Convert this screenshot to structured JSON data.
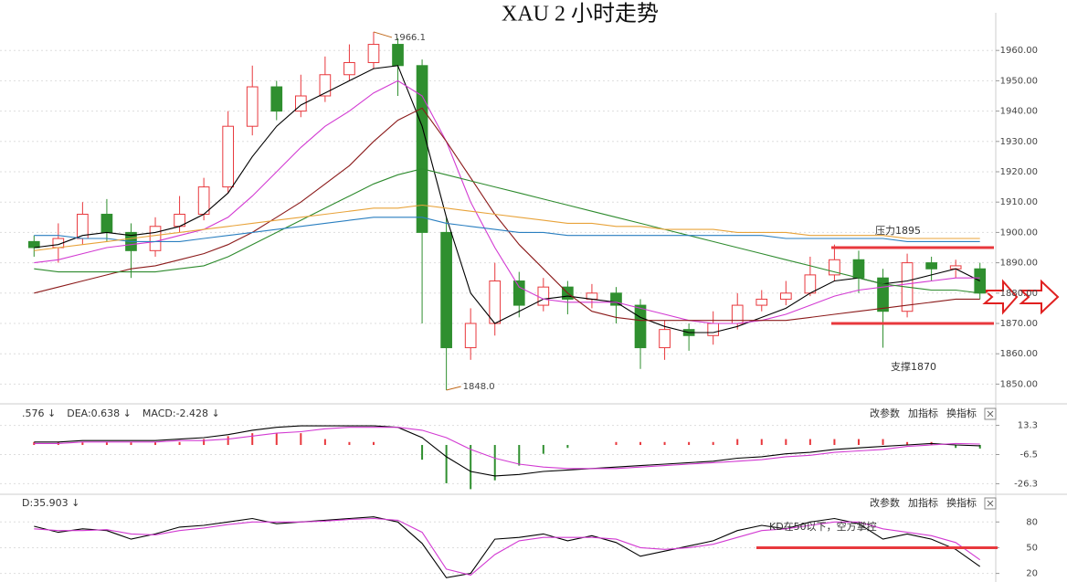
{
  "chart_data": [
    {
      "type": "candlestick",
      "title": "XAU 2 小时走势",
      "open": [
        1897,
        1895,
        1898,
        1906,
        1900,
        1894,
        1902,
        1906,
        1915,
        1935,
        1948,
        1940,
        1945,
        1952,
        1956,
        1962,
        1955,
        1900,
        1862,
        1870,
        1884,
        1876,
        1882,
        1878,
        1880,
        1876,
        1862,
        1868,
        1866,
        1870,
        1876,
        1878,
        1880,
        1886,
        1891,
        1885,
        1874,
        1890,
        1888,
        1888
      ],
      "high": [
        1899,
        1903,
        1910,
        1911,
        1903,
        1905,
        1912,
        1918,
        1940,
        1955,
        1950,
        1952,
        1958,
        1962,
        1966.1,
        1964,
        1957,
        1905,
        1875,
        1890,
        1887,
        1885,
        1884,
        1883,
        1882,
        1878,
        1871,
        1870,
        1874,
        1880,
        1881,
        1884,
        1892,
        1896,
        1894,
        1888,
        1893,
        1892,
        1891,
        1890
      ],
      "low": [
        1892,
        1890,
        1896,
        1897,
        1885,
        1892,
        1900,
        1904,
        1913,
        1932,
        1937,
        1938,
        1943,
        1950,
        1954,
        1945,
        1870,
        1848,
        1858,
        1866,
        1872,
        1874,
        1873,
        1875,
        1870,
        1855,
        1858,
        1861,
        1863,
        1868,
        1874,
        1876,
        1879,
        1884,
        1880,
        1862,
        1872,
        1884,
        1885,
        1878
      ],
      "close": [
        1895,
        1898,
        1906,
        1900,
        1894,
        1902,
        1906,
        1915,
        1935,
        1948,
        1940,
        1945,
        1952,
        1956,
        1962,
        1955,
        1900,
        1862,
        1870,
        1884,
        1876,
        1882,
        1878,
        1880,
        1876,
        1862,
        1868,
        1866,
        1870,
        1876,
        1878,
        1880,
        1886,
        1891,
        1885,
        1874,
        1890,
        1888,
        1889,
        1880
      ],
      "up_color": "#e8383d",
      "down_color": "#2f8f2f",
      "series": [
        {
          "color": "#000000",
          "values": [
            1895,
            1896,
            1899,
            1900,
            1899,
            1900,
            1902,
            1906,
            1913,
            1925,
            1935,
            1942,
            1946,
            1950,
            1954,
            1955,
            1935,
            1905,
            1880,
            1870,
            1874,
            1878,
            1879,
            1878,
            1877,
            1872,
            1869,
            1867,
            1867,
            1869,
            1872,
            1875,
            1880,
            1884,
            1885,
            1883,
            1884,
            1886,
            1888,
            1884
          ]
        },
        {
          "color": "#d23ad2",
          "values": [
            1890,
            1891,
            1893,
            1895,
            1896,
            1897,
            1899,
            1901,
            1905,
            1912,
            1920,
            1928,
            1935,
            1940,
            1946,
            1950,
            1945,
            1930,
            1910,
            1895,
            1882,
            1878,
            1877,
            1877,
            1877,
            1875,
            1873,
            1871,
            1870,
            1870,
            1871,
            1873,
            1876,
            1879,
            1881,
            1882,
            1883,
            1884,
            1885,
            1885
          ]
        },
        {
          "color": "#8b1a1a",
          "values": [
            1880,
            1882,
            1884,
            1886,
            1888,
            1889,
            1891,
            1893,
            1896,
            1900,
            1905,
            1910,
            1916,
            1922,
            1930,
            1937,
            1941,
            1930,
            1918,
            1906,
            1896,
            1888,
            1880,
            1874,
            1872,
            1871,
            1871,
            1871,
            1871,
            1871,
            1871,
            1871,
            1872,
            1873,
            1874,
            1875,
            1876,
            1877,
            1878,
            1878
          ]
        },
        {
          "color": "#2e8b2e",
          "values": [
            1888,
            1887,
            1887,
            1887,
            1887,
            1887,
            1888,
            1889,
            1892,
            1896,
            1900,
            1904,
            1908,
            1912,
            1916,
            1919,
            1921,
            1919,
            1917,
            1915,
            1913,
            1911,
            1909,
            1907,
            1905,
            1903,
            1901,
            1899,
            1897,
            1895,
            1893,
            1891,
            1889,
            1887,
            1885,
            1883,
            1882,
            1881,
            1881,
            1880
          ]
        },
        {
          "color": "#2a7fc0",
          "values": [
            1899,
            1899,
            1898,
            1898,
            1897,
            1897,
            1897,
            1898,
            1899,
            1900,
            1901,
            1902,
            1903,
            1904,
            1905,
            1905,
            1905,
            1903,
            1902,
            1901,
            1900,
            1900,
            1899,
            1899,
            1899,
            1899,
            1899,
            1899,
            1899,
            1899,
            1899,
            1898,
            1898,
            1898,
            1898,
            1898,
            1897,
            1897,
            1897,
            1897
          ]
        },
        {
          "color": "#e8a33a",
          "values": [
            1894,
            1895,
            1896,
            1897,
            1898,
            1899,
            1900,
            1901,
            1902,
            1903,
            1904,
            1905,
            1906,
            1907,
            1908,
            1908,
            1909,
            1908,
            1907,
            1906,
            1905,
            1904,
            1903,
            1903,
            1902,
            1902,
            1901,
            1901,
            1901,
            1900,
            1900,
            1900,
            1899,
            1899,
            1899,
            1899,
            1898,
            1898,
            1898,
            1898
          ]
        }
      ],
      "ylim": [
        1845,
        1970
      ],
      "yticks": [
        {
          "value": 1850,
          "label": "1850.00"
        },
        {
          "value": 1860,
          "label": "1860.00"
        },
        {
          "value": 1870,
          "label": "1870.00"
        },
        {
          "value": 1880,
          "label": "1880.00"
        },
        {
          "value": 1890,
          "label": "1890.00"
        },
        {
          "value": 1900,
          "label": "1900.00"
        },
        {
          "value": 1910,
          "label": "1910.00"
        },
        {
          "value": 1920,
          "label": "1920.00"
        },
        {
          "value": 1930,
          "label": "1930.00"
        },
        {
          "value": 1940,
          "label": "1940.00"
        },
        {
          "value": 1950,
          "label": "1950.00"
        },
        {
          "value": 1960,
          "label": "1960.00"
        }
      ],
      "grid": true,
      "peak_label": "1966.1",
      "trough_label": "1848.0",
      "levels": [
        {
          "label": "压力1895",
          "value": 1895,
          "color": "#e8383d"
        },
        {
          "label": "支撑1870",
          "value": 1870,
          "color": "#e8383d"
        }
      ]
    },
    {
      "type": "macd",
      "header": [
        {
          "text": ".576 ↓",
          "color": "#000000"
        },
        {
          "text": "DEA:0.638 ↓",
          "color": "#d23ad2"
        },
        {
          "text": "MACD:-2.428 ↓",
          "color": "#333333"
        }
      ],
      "tools": [
        "改参数",
        "加指标",
        "换指标"
      ],
      "series": [
        {
          "color": "#000000",
          "values": [
            2,
            2,
            3,
            3,
            3,
            3,
            4,
            5,
            7,
            10,
            12,
            13,
            13,
            13,
            13,
            12,
            5,
            -8,
            -18,
            -21,
            -20,
            -18,
            -17,
            -16,
            -15,
            -14,
            -13,
            -12,
            -11,
            -9,
            -8,
            -6,
            -5,
            -3,
            -2,
            -1,
            0,
            1,
            0,
            -0.576
          ]
        },
        {
          "color": "#d23ad2",
          "values": [
            1,
            1,
            2,
            2,
            2,
            2,
            3,
            3,
            4,
            6,
            8,
            9,
            11,
            12,
            12,
            12,
            10,
            5,
            -3,
            -9,
            -13,
            -15,
            -16,
            -16,
            -16,
            -15,
            -14,
            -13,
            -12,
            -11,
            -10,
            -8,
            -7,
            -5,
            -4,
            -3,
            -1,
            0,
            1,
            0.638
          ]
        }
      ],
      "histogram": [
        2,
        2,
        2,
        2,
        2,
        2,
        2,
        4,
        6,
        8,
        8,
        8,
        4,
        2,
        2,
        0,
        -10,
        -26,
        -30,
        -24,
        -14,
        -6,
        -2,
        0,
        2,
        2,
        2,
        2,
        2,
        4,
        4,
        4,
        4,
        4,
        4,
        4,
        2,
        2,
        -2,
        -2.428
      ],
      "up_color": "#e8383d",
      "down_color": "#2f8f2f",
      "ylim": [
        -31,
        18
      ],
      "yticks": [
        13.3,
        -6.5,
        -26.3
      ],
      "grid": true
    },
    {
      "type": "kd",
      "header": [
        {
          "text": "D:35.903 ↓",
          "color": "#d23ad2"
        }
      ],
      "tools": [
        "改参数",
        "加指标",
        "换指标"
      ],
      "series": [
        {
          "color": "#000000",
          "values": [
            75,
            68,
            72,
            70,
            60,
            66,
            74,
            76,
            80,
            84,
            78,
            80,
            82,
            84,
            86,
            80,
            55,
            15,
            20,
            60,
            62,
            66,
            58,
            64,
            56,
            40,
            46,
            52,
            58,
            70,
            76,
            72,
            80,
            84,
            78,
            60,
            66,
            60,
            48,
            28
          ]
        },
        {
          "color": "#d23ad2",
          "values": [
            72,
            70,
            70,
            71,
            66,
            65,
            70,
            73,
            77,
            80,
            80,
            80,
            81,
            83,
            84,
            82,
            68,
            25,
            18,
            42,
            58,
            62,
            62,
            62,
            60,
            50,
            48,
            50,
            54,
            62,
            70,
            72,
            76,
            80,
            80,
            72,
            68,
            64,
            56,
            35.903
          ]
        }
      ],
      "ylim": [
        10,
        108
      ],
      "yticks": [
        20,
        50,
        80
      ],
      "grid": true,
      "annotation": "KD在50以下，空方掌控",
      "level": 50,
      "level_color": "#e8383d"
    }
  ]
}
